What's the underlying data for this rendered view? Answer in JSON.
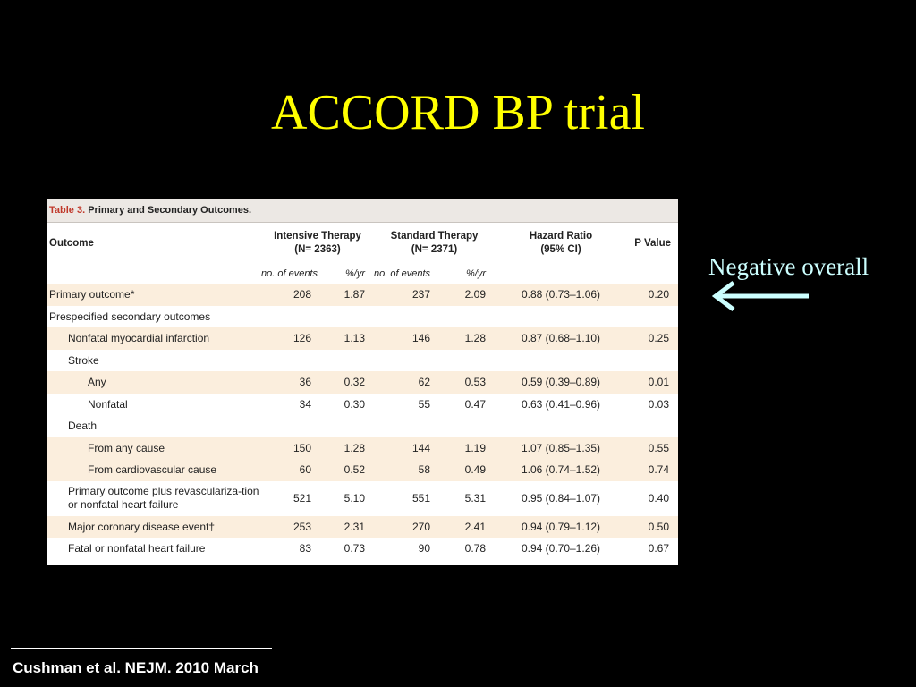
{
  "slide": {
    "title": "ACCORD BP trial",
    "note": "Negative overall",
    "citation": "Cushman et al. NEJM. 2010 March"
  },
  "table": {
    "caption_label": "Table 3.",
    "caption_text": "Primary and Secondary Outcomes.",
    "headers": {
      "outcome": "Outcome",
      "intensive_line1": "Intensive Therapy",
      "intensive_line2": "(N= 2363)",
      "standard_line1": "Standard Therapy",
      "standard_line2": "(N= 2371)",
      "hr_line1": "Hazard Ratio",
      "hr_line2": "(95% CI)",
      "pvalue": "P Value",
      "events": "no. of events",
      "rate": "%/yr"
    },
    "rows": [
      {
        "outcome": "Primary outcome*",
        "i_events": "208",
        "i_rate": "1.87",
        "s_events": "237",
        "s_rate": "2.09",
        "hr": "0.88 (0.73–1.06)",
        "p": "0.20"
      },
      {
        "outcome": "Prespecified secondary outcomes",
        "i_events": "",
        "i_rate": "",
        "s_events": "",
        "s_rate": "",
        "hr": "",
        "p": ""
      },
      {
        "outcome": "Nonfatal myocardial infarction",
        "i_events": "126",
        "i_rate": "1.13",
        "s_events": "146",
        "s_rate": "1.28",
        "hr": "0.87 (0.68–1.10)",
        "p": "0.25"
      },
      {
        "outcome": "Stroke",
        "i_events": "",
        "i_rate": "",
        "s_events": "",
        "s_rate": "",
        "hr": "",
        "p": ""
      },
      {
        "outcome": "Any",
        "i_events": "36",
        "i_rate": "0.32",
        "s_events": "62",
        "s_rate": "0.53",
        "hr": "0.59 (0.39–0.89)",
        "p": "0.01"
      },
      {
        "outcome": "Nonfatal",
        "i_events": "34",
        "i_rate": "0.30",
        "s_events": "55",
        "s_rate": "0.47",
        "hr": "0.63 (0.41–0.96)",
        "p": "0.03"
      },
      {
        "outcome": "Death",
        "i_events": "",
        "i_rate": "",
        "s_events": "",
        "s_rate": "",
        "hr": "",
        "p": ""
      },
      {
        "outcome": "From any cause",
        "i_events": "150",
        "i_rate": "1.28",
        "s_events": "144",
        "s_rate": "1.19",
        "hr": "1.07 (0.85–1.35)",
        "p": "0.55"
      },
      {
        "outcome": "From cardiovascular cause",
        "i_events": "60",
        "i_rate": "0.52",
        "s_events": "58",
        "s_rate": "0.49",
        "hr": "1.06 (0.74–1.52)",
        "p": "0.74"
      },
      {
        "outcome": "Primary outcome plus revasculariza-tion or nonfatal heart failure",
        "i_events": "521",
        "i_rate": "5.10",
        "s_events": "551",
        "s_rate": "5.31",
        "hr": "0.95 (0.84–1.07)",
        "p": "0.40"
      },
      {
        "outcome": "Major coronary disease event†",
        "i_events": "253",
        "i_rate": "2.31",
        "s_events": "270",
        "s_rate": "2.41",
        "hr": "0.94 (0.79–1.12)",
        "p": "0.50"
      },
      {
        "outcome": "Fatal or nonfatal heart failure",
        "i_events": "83",
        "i_rate": "0.73",
        "s_events": "90",
        "s_rate": "0.78",
        "hr": "0.94 (0.70–1.26)",
        "p": "0.67"
      }
    ]
  },
  "colors": {
    "background": "#000000",
    "title": "#ffff00",
    "note": "#ccffff",
    "row_shade": "#fbeedd",
    "caption_label": "#c0392b"
  }
}
